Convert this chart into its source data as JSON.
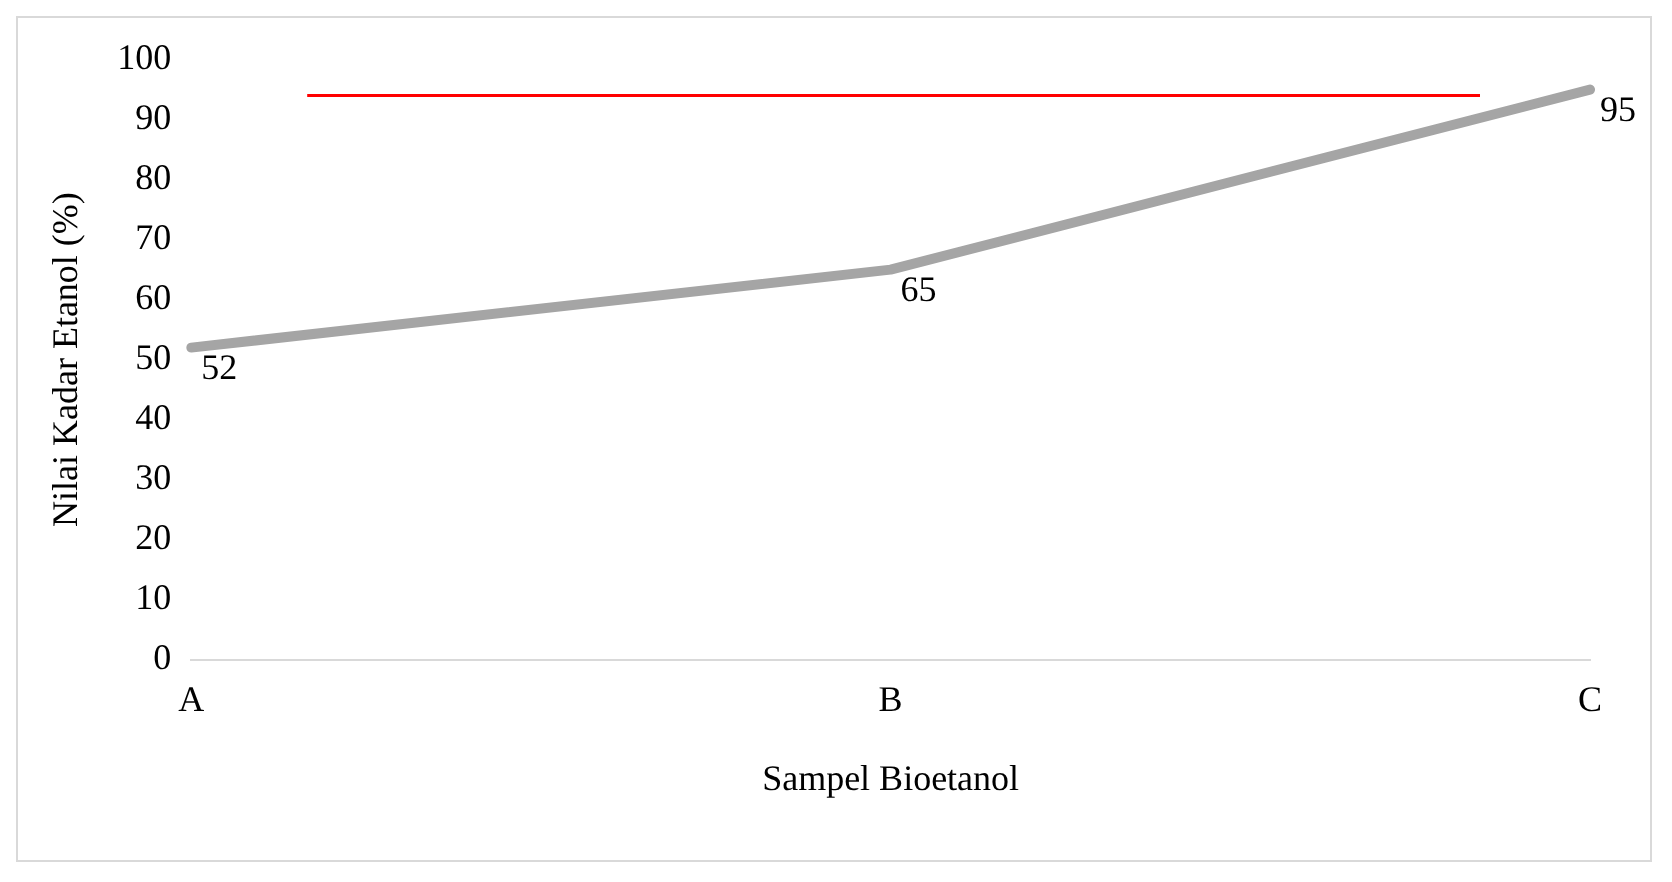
{
  "chart_data": {
    "type": "line",
    "xlabel": "Sampel Bioetanol",
    "ylabel": "Nilai Kadar Etanol (%)",
    "categories": [
      "A",
      "B",
      "C"
    ],
    "series": [
      {
        "color": "#a5a5a5",
        "values": [
          52,
          65,
          95
        ]
      }
    ],
    "ylim": [
      0,
      100
    ],
    "yticks": [
      0,
      10,
      20,
      30,
      40,
      50,
      60,
      70,
      80,
      90,
      100
    ],
    "ref_lines": [
      {
        "axis": "y",
        "value": 94,
        "color": "#ff0000"
      }
    ],
    "data_labels": true,
    "grid": false,
    "legend": false,
    "marker": "none",
    "line_style": "solid"
  }
}
